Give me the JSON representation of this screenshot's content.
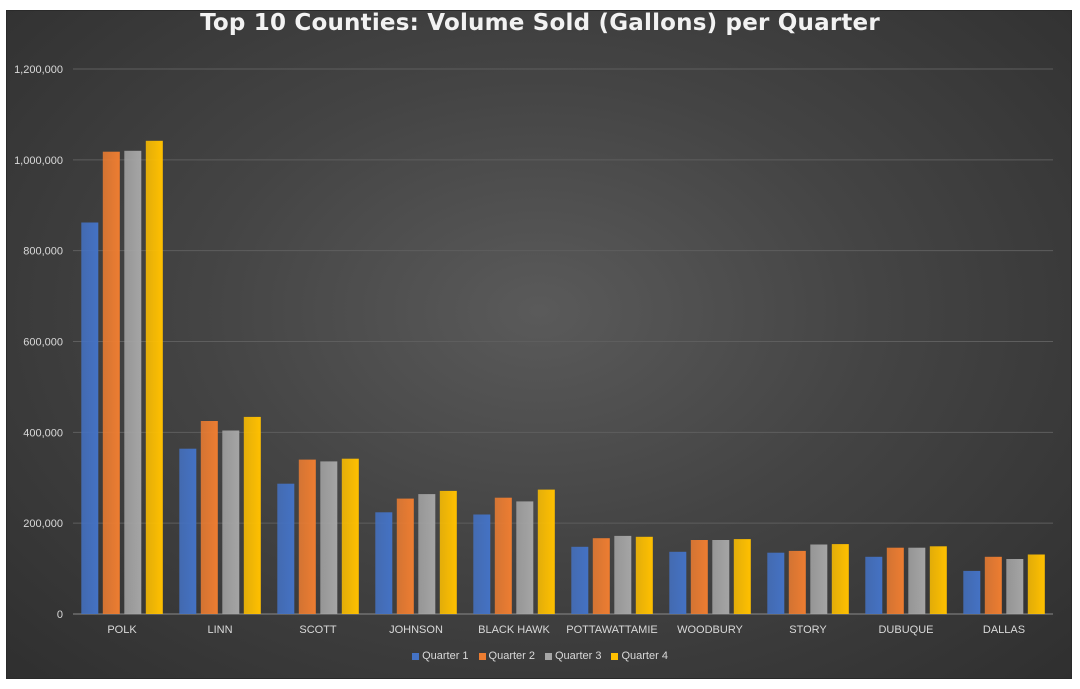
{
  "chart_data": {
    "type": "bar",
    "title": "Top 10 Counties: Volume Sold (Gallons) per Quarter",
    "xlabel": "",
    "ylabel": "",
    "ylim": [
      0,
      1200000
    ],
    "yticks": [
      0,
      200000,
      400000,
      600000,
      800000,
      1000000,
      1200000
    ],
    "ytick_labels": [
      "0",
      "200,000",
      "400,000",
      "600,000",
      "800,000",
      "1,000,000",
      "1,200,000"
    ],
    "grid": true,
    "legend_position": "bottom",
    "categories": [
      "POLK",
      "LINN",
      "SCOTT",
      "JOHNSON",
      "BLACK HAWK",
      "POTTAWATTAMIE",
      "WOODBURY",
      "STORY",
      "DUBUQUE",
      "DALLAS"
    ],
    "series": [
      {
        "name": "Quarter 1",
        "color": "#4472c4",
        "values": [
          862000,
          364000,
          287000,
          224000,
          219000,
          148000,
          137000,
          135000,
          126000,
          95000
        ]
      },
      {
        "name": "Quarter 2",
        "color": "#ed7d31",
        "values": [
          1018000,
          425000,
          340000,
          254000,
          256000,
          167000,
          163000,
          139000,
          146000,
          126000
        ]
      },
      {
        "name": "Quarter 3",
        "color": "#a5a5a5",
        "values": [
          1020000,
          404000,
          336000,
          264000,
          248000,
          172000,
          163000,
          153000,
          146000,
          121000
        ]
      },
      {
        "name": "Quarter 4",
        "color": "#ffc000",
        "values": [
          1042000,
          434000,
          342000,
          271000,
          274000,
          170000,
          165000,
          154000,
          149000,
          131000
        ]
      }
    ]
  },
  "colors": {
    "background": "#444444",
    "text": "#d9d9d9",
    "grid": "#5e5e5e",
    "title": "#f2f2f2"
  }
}
